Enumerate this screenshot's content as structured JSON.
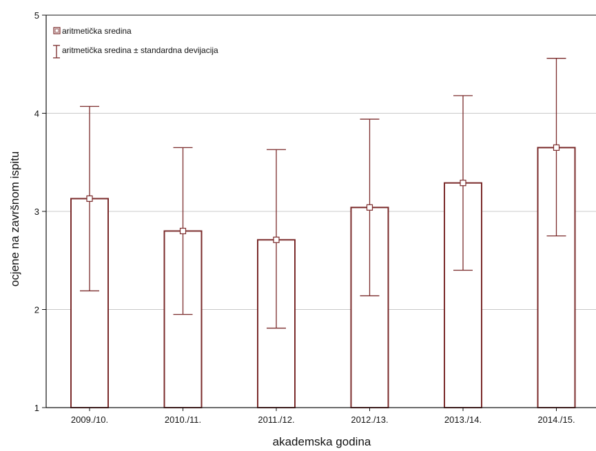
{
  "chart_data": {
    "type": "bar",
    "categories": [
      "2009./10.",
      "2010./11.",
      "2011./12.",
      "2012./13.",
      "2013./14.",
      "2014./15."
    ],
    "values": [
      3.13,
      2.8,
      2.71,
      3.04,
      3.29,
      3.65
    ],
    "error_low": [
      2.19,
      1.95,
      1.81,
      2.14,
      2.4,
      2.75
    ],
    "error_high": [
      4.07,
      3.65,
      3.63,
      3.94,
      4.18,
      4.56
    ],
    "title": "",
    "xlabel": "akademska godina",
    "ylabel": "ocjene na završnom ispitu",
    "ylim": [
      1,
      5
    ],
    "yticks": [
      "1",
      "2",
      "3",
      "4",
      "5"
    ],
    "grid": true,
    "legend_position": "top-left",
    "legend": [
      {
        "symbol": "square-marker",
        "label": "aritmetička sredina"
      },
      {
        "symbol": "error-bar",
        "label": "aritmetička sredina ± standardna devijacija"
      }
    ],
    "colors": {
      "bar_stroke": "#7a2a2a",
      "grid": "#c8c8c8",
      "axis": "#111111"
    }
  }
}
